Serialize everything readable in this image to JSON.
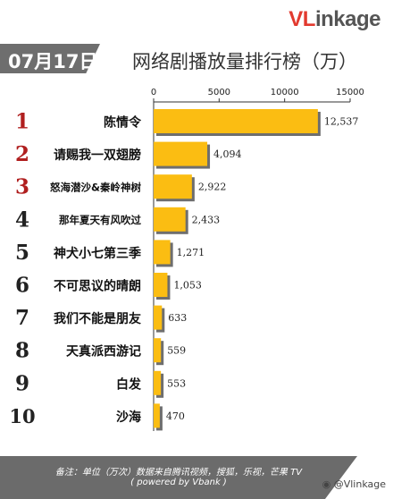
{
  "header": {
    "logo_v": "V",
    "logo_l": "L",
    "logo_i": "i",
    "logo_rest": "nkage",
    "date": "07月17日",
    "title": "网络剧播放量排行榜（万）"
  },
  "footer": {
    "note_line1": "备注：单位（万次）数据来自腾讯视频，搜狐，乐视，芒果 TV",
    "note_line2": "( powered by Vbank )",
    "weibo": "@Vlinkage"
  },
  "colors": {
    "bar": "#fbbd12",
    "rank_highlight": "#b01f1f",
    "rank_plain": "#222222",
    "banner": "#6e6e6e"
  },
  "chart_data": {
    "type": "bar",
    "orientation": "horizontal",
    "title": "网络剧播放量排行榜（万）",
    "ranks": [
      "1",
      "2",
      "3",
      "4",
      "5",
      "6",
      "7",
      "8",
      "9",
      "10"
    ],
    "categories": [
      "陈情令",
      "请赐我一双翅膀",
      "怒海潜沙&秦岭神树",
      "那年夏天有风吹过",
      "神犬小七第三季",
      "不可思议的晴朗",
      "我们不能是朋友",
      "天真派西游记",
      "白发",
      "沙海"
    ],
    "values": [
      12537,
      4094,
      2922,
      2433,
      1271,
      1053,
      633,
      559,
      553,
      470
    ],
    "value_labels": [
      "12,537",
      "4,094",
      "2,922",
      "2,433",
      "1,271",
      "1,053",
      "633",
      "559",
      "553",
      "470"
    ],
    "xlim": [
      0,
      15000
    ],
    "xticks": [
      "0",
      "5000",
      "10000",
      "15000"
    ],
    "tick_values": [
      0,
      5000,
      10000,
      15000
    ],
    "axis_position": "top",
    "unit": "万"
  }
}
